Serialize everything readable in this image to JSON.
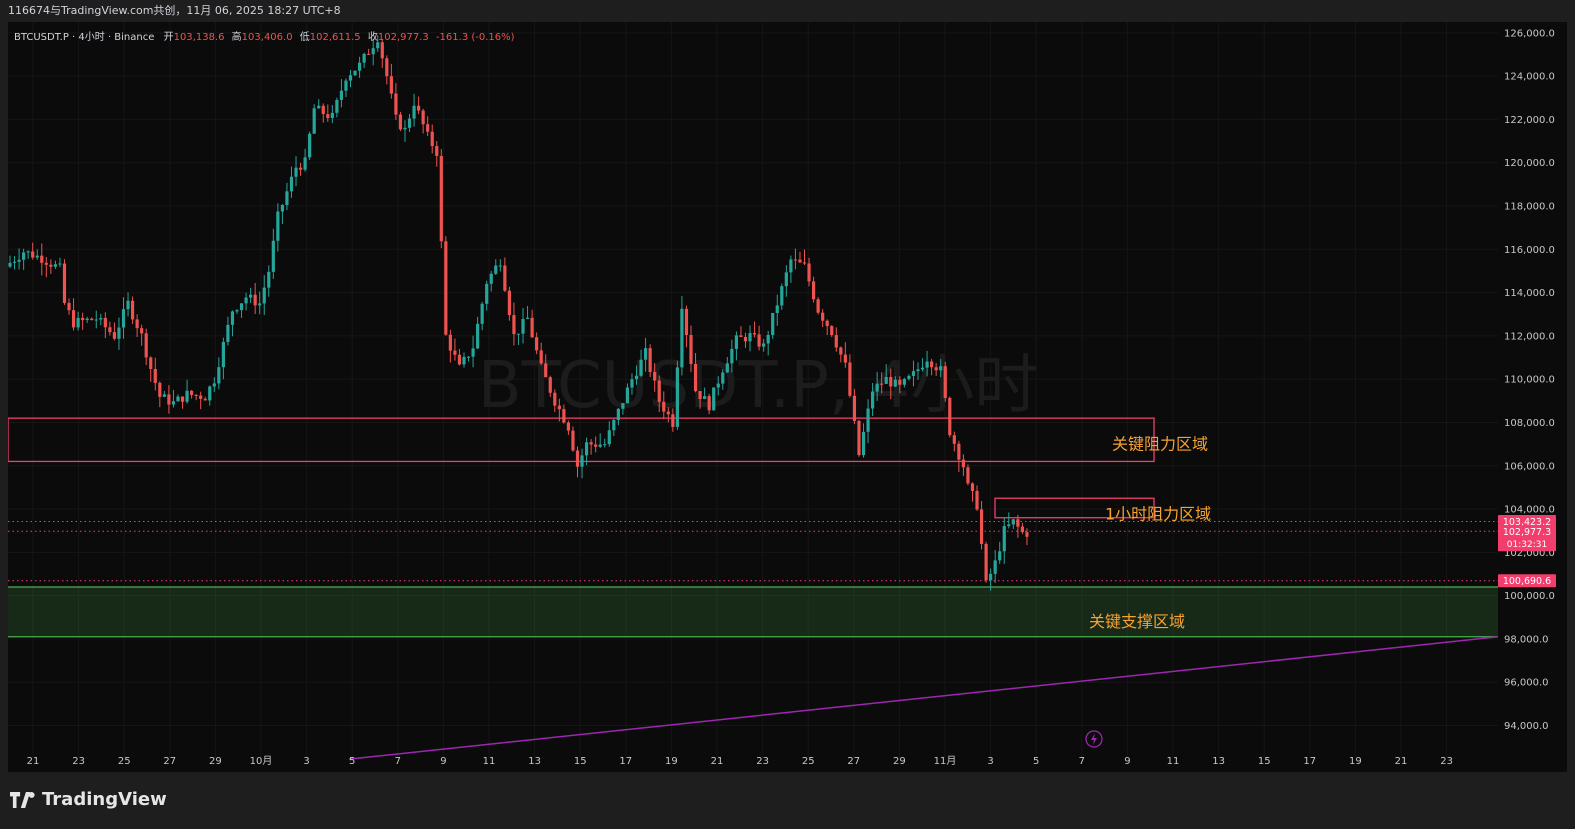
{
  "header": {
    "share_text": "116674与TradingView.com共创，11月 06, 2025 18:27 UTC+8"
  },
  "legend": {
    "symbol": "BTCUSDT.P · 4小时 · Binance",
    "open_label": "开",
    "open": "103,138.6",
    "high_label": "高",
    "high": "103,406.0",
    "low_label": "低",
    "low": "102,611.5",
    "close_label": "收",
    "close": "102,977.3",
    "change": "-161.3 (-0.16%)"
  },
  "watermark": "BTCUSDT.P, 4小时",
  "brand": "TradingView",
  "colors": {
    "up": "#26a69a",
    "down": "#ef5350",
    "resistance": "#f23d6d",
    "support": "#4caf50",
    "trendline": "#9c27b0",
    "zone_label": "#f7a231"
  },
  "chart_data": {
    "type": "candlestick",
    "ylim": [
      92500,
      126500
    ],
    "y_ticks": [
      "126,000.0",
      "124,000.0",
      "122,000.0",
      "120,000.0",
      "118,000.0",
      "116,000.0",
      "114,000.0",
      "112,000.0",
      "110,000.0",
      "108,000.0",
      "106,000.0",
      "104,000.0",
      "102,000.0",
      "100,000.0",
      "98,000.0",
      "96,000.0",
      "94,000.0"
    ],
    "x_ticks": [
      "21",
      "23",
      "25",
      "27",
      "29",
      "10月",
      "3",
      "5",
      "7",
      "9",
      "11",
      "13",
      "15",
      "17",
      "19",
      "21",
      "23",
      "25",
      "27",
      "29",
      "11月",
      "3",
      "5",
      "7",
      "9",
      "11",
      "13",
      "15",
      "17",
      "19",
      "21",
      "23"
    ],
    "price_path": [
      [
        0,
        115200
      ],
      [
        4,
        115900
      ],
      [
        8,
        115600
      ],
      [
        12,
        115100
      ],
      [
        13,
        113500
      ],
      [
        15,
        112600
      ],
      [
        20,
        112800
      ],
      [
        24,
        112000
      ],
      [
        27,
        113500
      ],
      [
        30,
        112000
      ],
      [
        32,
        110500
      ],
      [
        34,
        109200
      ],
      [
        37,
        108900
      ],
      [
        40,
        109300
      ],
      [
        44,
        109200
      ],
      [
        46,
        110000
      ],
      [
        48,
        111600
      ],
      [
        50,
        113200
      ],
      [
        53,
        113800
      ],
      [
        56,
        113500
      ],
      [
        58,
        115000
      ],
      [
        60,
        117500
      ],
      [
        64,
        119800
      ],
      [
        66,
        120000
      ],
      [
        68,
        122500
      ],
      [
        72,
        122100
      ],
      [
        75,
        124000
      ],
      [
        78,
        124500
      ],
      [
        82,
        125800
      ],
      [
        84,
        124000
      ],
      [
        86,
        122000
      ],
      [
        88,
        121500
      ],
      [
        90,
        122800
      ],
      [
        93,
        121200
      ],
      [
        95,
        120500
      ],
      [
        97,
        112000
      ],
      [
        100,
        110500
      ],
      [
        103,
        111500
      ],
      [
        106,
        114500
      ],
      [
        109,
        115500
      ],
      [
        112,
        112000
      ],
      [
        115,
        112800
      ],
      [
        118,
        110500
      ],
      [
        121,
        109000
      ],
      [
        124,
        107800
      ],
      [
        126,
        106000
      ],
      [
        128,
        107000
      ],
      [
        132,
        107000
      ],
      [
        135,
        108500
      ],
      [
        138,
        110000
      ],
      [
        141,
        111200
      ],
      [
        144,
        109000
      ],
      [
        147,
        108000
      ],
      [
        149,
        113500
      ],
      [
        152,
        109500
      ],
      [
        155,
        108800
      ],
      [
        158,
        110500
      ],
      [
        161,
        111800
      ],
      [
        164,
        112000
      ],
      [
        167,
        111500
      ],
      [
        170,
        113500
      ],
      [
        173,
        115500
      ],
      [
        176,
        115200
      ],
      [
        179,
        113200
      ],
      [
        182,
        112200
      ],
      [
        185,
        110600
      ],
      [
        188,
        106500
      ],
      [
        191,
        109500
      ],
      [
        194,
        110000
      ],
      [
        197,
        109600
      ],
      [
        200,
        110200
      ],
      [
        203,
        111000
      ],
      [
        206,
        110400
      ],
      [
        208,
        107600
      ],
      [
        211,
        106000
      ],
      [
        212,
        105000
      ],
      [
        214,
        104200
      ],
      [
        216,
        100500
      ],
      [
        218,
        101500
      ],
      [
        220,
        103000
      ],
      [
        222,
        103400
      ],
      [
        224,
        102900
      ]
    ],
    "zones": [
      {
        "label": "关键阻力区域",
        "top": 108200,
        "bottom": 106200
      },
      {
        "label": "1小时阻力区域",
        "top": 104500,
        "bottom": 103600
      },
      {
        "label": "关键支撑区域",
        "top": 100400,
        "bottom": 98100
      }
    ],
    "price_lines": [
      {
        "value": 103423.2,
        "label": "103,423.2",
        "sub": ""
      },
      {
        "value": 102977.3,
        "label": "102,977.3",
        "sub": "01:32:31"
      },
      {
        "value": 100690.6,
        "label": "100,690.6",
        "sub": ""
      }
    ],
    "trendline": {
      "x0": 50,
      "y0": 93000,
      "x1": 220,
      "y1": 98100
    }
  }
}
